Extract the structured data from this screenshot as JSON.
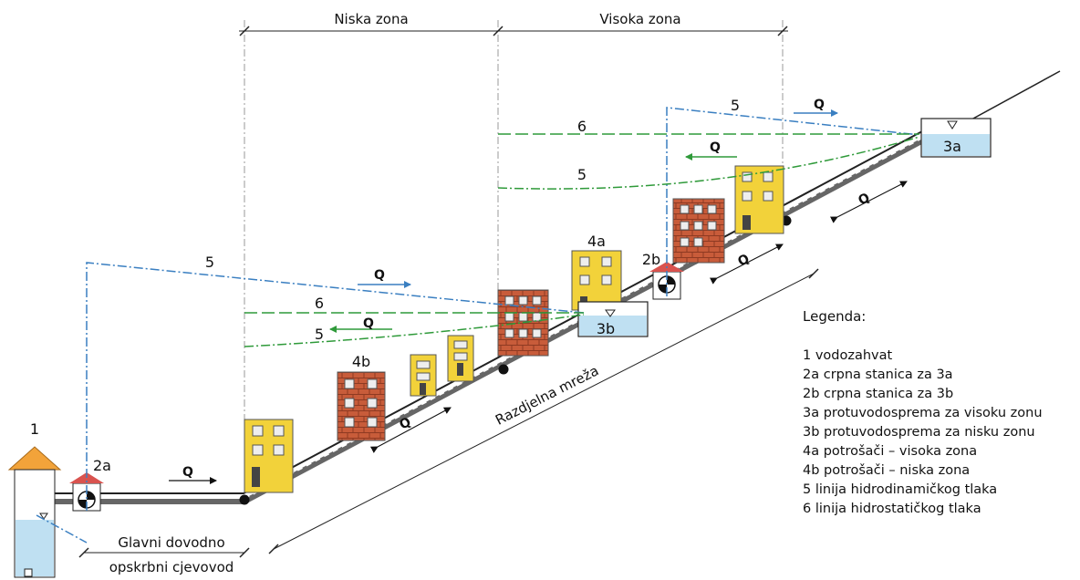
{
  "zones": {
    "low": "Niska zona",
    "high": "Visoka zona"
  },
  "items": {
    "intake": "1",
    "pump_a": "2a",
    "pump_b": "2b",
    "reservoir_a": "3a",
    "reservoir_b": "3b",
    "consumers_a": "4a",
    "consumers_b": "4b"
  },
  "lines": {
    "dynamic": "5",
    "static": "6"
  },
  "flow": "Q",
  "pipes": {
    "main_line1": "Glavni dovodno",
    "main_line2": "opskrbni cjevovod",
    "network": "Razdjelna mreža"
  },
  "legend": {
    "title": "Legenda:",
    "items": [
      "1 vodozahvat",
      "2a crpna stanica za 3a",
      "2b crpna stanica za 3b",
      "3a protuvodosprema za visoku zonu",
      "3b protuvodosprema za nisku zonu",
      "4a potrošači – visoka zona",
      "4b potrošači – niska zona",
      "5 linija hidrodinamičkog tlaka",
      "6 linija hidrostatičkog tlaka"
    ]
  },
  "colors": {
    "dynamic_line": "#3a7fc1",
    "static_line": "#2f9a3a",
    "building_yellow": "#f2d23a",
    "building_brick": "#c85c3a",
    "water": "#bfe0f2",
    "roof": "#f2a33a",
    "pump_roof": "#d9534f"
  }
}
